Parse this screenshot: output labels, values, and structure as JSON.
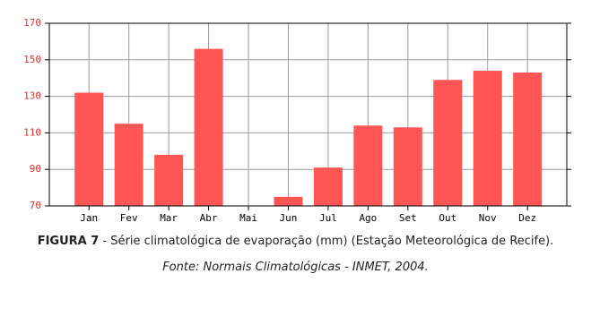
{
  "chart_data": {
    "type": "bar",
    "categories": [
      "Jan",
      "Fev",
      "Mar",
      "Abr",
      "Mai",
      "Jun",
      "Jul",
      "Ago",
      "Set",
      "Out",
      "Nov",
      "Dez"
    ],
    "values": [
      132,
      115,
      98,
      156,
      null,
      75,
      91,
      114,
      113,
      139,
      144,
      143
    ],
    "color": "#ff5555",
    "ylim": [
      70,
      170
    ],
    "yticks": [
      70,
      90,
      110,
      130,
      150,
      170
    ],
    "grid": true
  },
  "caption": {
    "label": "FIGURA 7",
    "text": " - Série climatológica de evaporação (mm) (Estação Meteorológica de Recife)."
  },
  "source": "Fonte: Normais Climatológicas - INMET, 2004."
}
